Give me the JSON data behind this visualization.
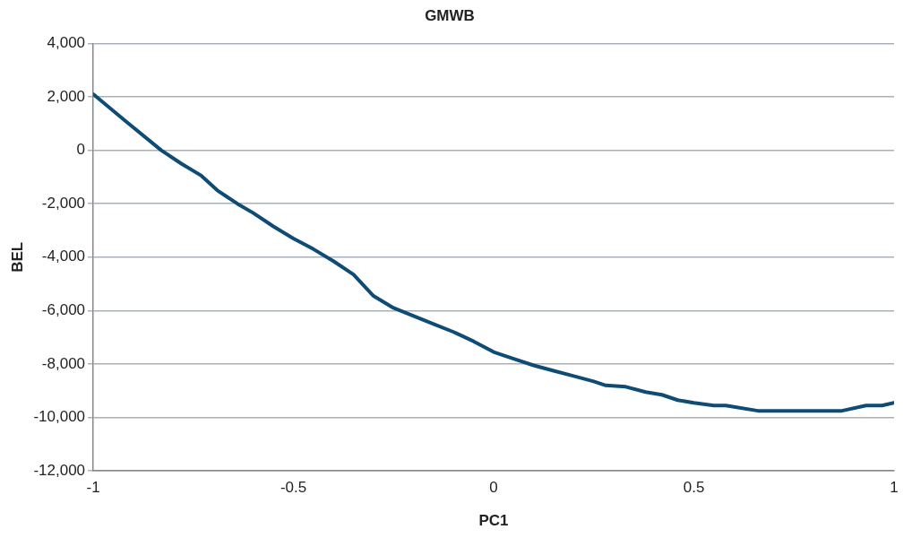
{
  "chart_data": {
    "type": "line",
    "title": "GMWB",
    "xlabel": "PC1",
    "ylabel": "BEL",
    "x": [
      -1,
      -0.92,
      -0.83,
      -0.78,
      -0.73,
      -0.69,
      -0.64,
      -0.6,
      -0.55,
      -0.5,
      -0.45,
      -0.4,
      -0.35,
      -0.3,
      -0.25,
      -0.2,
      -0.15,
      -0.1,
      -0.05,
      0,
      0.05,
      0.1,
      0.15,
      0.2,
      0.25,
      0.28,
      0.33,
      0.38,
      0.42,
      0.46,
      0.5,
      0.55,
      0.58,
      0.66,
      0.75,
      0.87,
      0.93,
      0.97,
      1
    ],
    "series": [
      {
        "color": "#0f4c75",
        "values": [
          2100,
          1100,
          0,
          -500,
          -950,
          -1500,
          -2000,
          -2350,
          -2850,
          -3300,
          -3700,
          -4150,
          -4650,
          -5450,
          -5900,
          -6200,
          -6500,
          -6800,
          -7150,
          -7550,
          -7800,
          -8050,
          -8250,
          -8450,
          -8650,
          -8800,
          -8850,
          -9050,
          -9150,
          -9350,
          -9450,
          -9550,
          -9550,
          -9750,
          -9750,
          -9750,
          -9550,
          -9550,
          -9450
        ]
      }
    ],
    "xlim": [
      -1,
      1
    ],
    "xticks": [
      -1,
      -0.5,
      0,
      0.5,
      1
    ],
    "ylim": [
      -12000,
      4000
    ],
    "yticks": [
      {
        "value": -12000,
        "label": "-12,000"
      },
      {
        "value": -10000,
        "label": "-10,000"
      },
      {
        "value": -8000,
        "label": "-8,000"
      },
      {
        "value": -6000,
        "label": "-6,000"
      },
      {
        "value": -4000,
        "label": "-4,000"
      },
      {
        "value": -2000,
        "label": "-2,000"
      },
      0,
      {
        "value": 2000,
        "label": "2,000"
      },
      {
        "value": 4000,
        "label": "4,000"
      }
    ],
    "grid": "y",
    "legend": false,
    "marker": "none",
    "line_style": "solid"
  }
}
